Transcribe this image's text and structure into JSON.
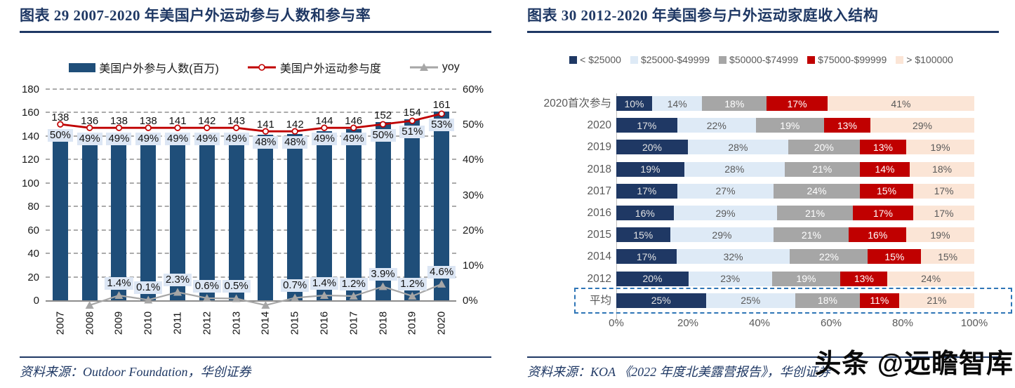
{
  "watermark": "头条 @远瞻智库",
  "left_panel": {
    "title": "图表 29  2007-2020 年美国户外运动参与人数和参与率",
    "source": "资料来源：Outdoor Foundation，华创证券"
  },
  "right_panel": {
    "title": "图表 30  2012-2020 年美国参与户外运动家庭收入结构",
    "source": "资料来源：KOA 《2022 年度北美露营报告》，华创证券"
  },
  "chart_data": [
    {
      "type": "bar+line",
      "title": "2007-2020 年美国户外运动参与人数和参与率",
      "categories": [
        "2007",
        "2008",
        "2009",
        "2010",
        "2011",
        "2012",
        "2013",
        "2014",
        "2015",
        "2016",
        "2017",
        "2018",
        "2019",
        "2020"
      ],
      "series": [
        {
          "name": "美国户外参与人数(百万)",
          "type": "bar",
          "axis": "left",
          "color": "#1F4E79",
          "values": [
            138,
            136,
            138,
            138,
            141,
            142,
            143,
            141,
            142,
            144,
            146,
            152,
            154,
            161
          ]
        },
        {
          "name": "美国户外运动参与度",
          "type": "line",
          "axis": "right",
          "color": "#C00000",
          "values": [
            50,
            49,
            49,
            49,
            49,
            49,
            49,
            48,
            48,
            49,
            49,
            50,
            51,
            53
          ],
          "labels": [
            "50%",
            "49%",
            "49%",
            "49%",
            "49%",
            "49%",
            "49%",
            "48%",
            "48%",
            "49%",
            "49%",
            "50%",
            "51%",
            "53%"
          ]
        },
        {
          "name": "yoy",
          "type": "line",
          "axis": "right",
          "color": "#A6A6A6",
          "values": [
            null,
            -1.4,
            1.4,
            0.1,
            2.3,
            0.6,
            0.5,
            -1.4,
            0.7,
            1.4,
            1.2,
            3.9,
            1.2,
            4.6
          ],
          "labels": [
            null,
            null,
            "1.4%",
            "0.1%",
            "2.3%",
            "0.6%",
            "0.5%",
            null,
            "0.7%",
            "1.4%",
            "1.2%",
            "3.9%",
            "1.2%",
            "4.6%"
          ]
        }
      ],
      "left_axis": {
        "min": 0,
        "max": 180,
        "step": 20
      },
      "right_axis": {
        "min": 0,
        "max": 60,
        "step": 10,
        "suffix": "%"
      },
      "label_bg": "#DCE6F4",
      "grid": "dashed-horizontal",
      "legend_position": "top"
    },
    {
      "type": "stacked-bar-horizontal",
      "title": "2012-2020 年美国参与户外运动家庭收入结构",
      "legend": [
        {
          "label": "< $25000",
          "color": "#1F3864",
          "text_color": "#E3E3E3"
        },
        {
          "label": "$25000-$49999",
          "color": "#DEEAF6",
          "text_color": "#595959"
        },
        {
          "label": "$50000-$74999",
          "color": "#A6A6A6",
          "text_color": "#FFFFFF"
        },
        {
          "label": "$75000-$99999",
          "color": "#C00000",
          "text_color": "#FFFFFF"
        },
        {
          "label": "> $100000",
          "color": "#FBE5D6",
          "text_color": "#595959"
        }
      ],
      "categories": [
        "2020首次参与",
        "2020",
        "2019",
        "2018",
        "2017",
        "2016",
        "2015",
        "2014",
        "2012",
        "平均"
      ],
      "rows": [
        [
          10,
          14,
          18,
          17,
          41
        ],
        [
          17,
          22,
          19,
          13,
          29
        ],
        [
          20,
          28,
          20,
          13,
          19
        ],
        [
          19,
          28,
          21,
          14,
          18
        ],
        [
          17,
          27,
          24,
          15,
          17
        ],
        [
          16,
          29,
          21,
          17,
          17
        ],
        [
          15,
          29,
          21,
          16,
          19
        ],
        [
          17,
          32,
          22,
          15,
          15
        ],
        [
          20,
          23,
          19,
          13,
          24
        ],
        [
          25,
          25,
          18,
          11,
          21
        ]
      ],
      "x_axis_ticks": [
        "0%",
        "20%",
        "40%",
        "60%",
        "80%",
        "100%"
      ],
      "highlight_row": "平均",
      "legend_position": "top"
    }
  ]
}
